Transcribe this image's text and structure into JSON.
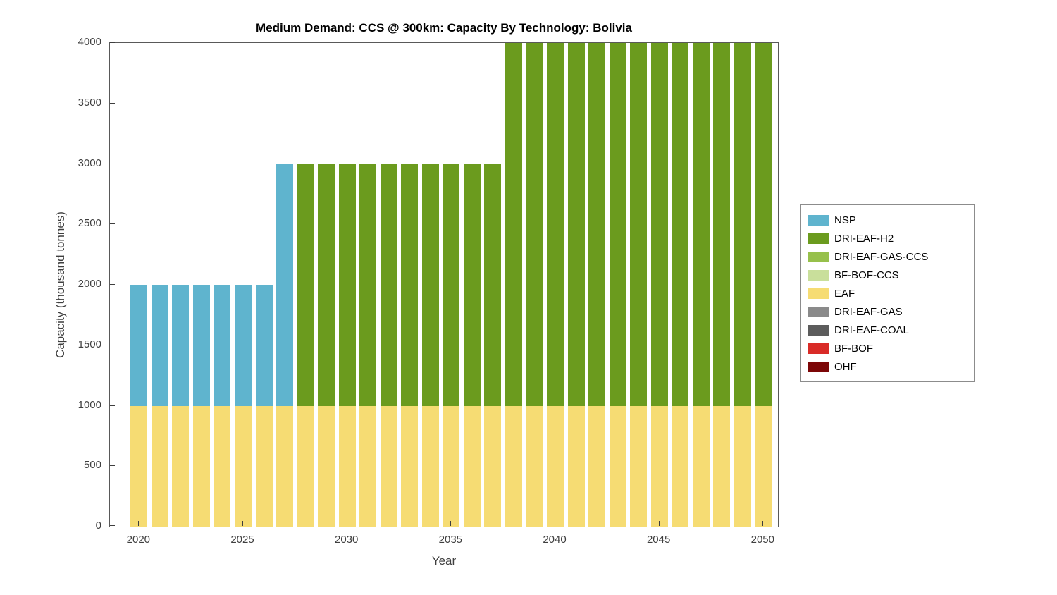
{
  "chart_data": {
    "type": "bar",
    "stacked": true,
    "title": "Medium Demand: CCS @ 300km: Capacity By Technology: Bolivia",
    "xlabel": "Year",
    "ylabel": "Capacity (thousand tonnes)",
    "ylim": [
      0,
      4000
    ],
    "xlim": [
      2018.6,
      2050.7
    ],
    "yticks": [
      0,
      500,
      1000,
      1500,
      2000,
      2500,
      3000,
      3500,
      4000
    ],
    "xticks": [
      2020,
      2025,
      2030,
      2035,
      2040,
      2045,
      2050
    ],
    "grid": false,
    "legend_position": "right-outside",
    "years": [
      2020,
      2021,
      2022,
      2023,
      2024,
      2025,
      2026,
      2027,
      2028,
      2029,
      2030,
      2031,
      2032,
      2033,
      2034,
      2035,
      2036,
      2037,
      2038,
      2039,
      2040,
      2041,
      2042,
      2043,
      2044,
      2045,
      2046,
      2047,
      2048,
      2049,
      2050
    ],
    "series": [
      {
        "name": "EAF",
        "color": "#F6DC73",
        "values": [
          1000,
          1000,
          1000,
          1000,
          1000,
          1000,
          1000,
          1000,
          1000,
          1000,
          1000,
          1000,
          1000,
          1000,
          1000,
          1000,
          1000,
          1000,
          1000,
          1000,
          1000,
          1000,
          1000,
          1000,
          1000,
          1000,
          1000,
          1000,
          1000,
          1000,
          1000
        ]
      },
      {
        "name": "NSP",
        "color": "#5FB4CE",
        "values": [
          1000,
          1000,
          1000,
          1000,
          1000,
          1000,
          1000,
          2000,
          0,
          0,
          0,
          0,
          0,
          0,
          0,
          0,
          0,
          0,
          0,
          0,
          0,
          0,
          0,
          0,
          0,
          0,
          0,
          0,
          0,
          0,
          0
        ]
      },
      {
        "name": "DRI-EAF-H2",
        "color": "#6B9B1E",
        "values": [
          0,
          0,
          0,
          0,
          0,
          0,
          0,
          0,
          2000,
          2000,
          2000,
          2000,
          2000,
          2000,
          2000,
          2000,
          2000,
          2000,
          3000,
          3000,
          3000,
          3000,
          3000,
          3000,
          3000,
          3000,
          3000,
          3000,
          3000,
          3000,
          3000
        ]
      }
    ],
    "legend": [
      {
        "label": "NSP",
        "color": "#5FB4CE"
      },
      {
        "label": "DRI-EAF-H2",
        "color": "#6B9B1E"
      },
      {
        "label": "DRI-EAF-GAS-CCS",
        "color": "#97C04B"
      },
      {
        "label": "BF-BOF-CCS",
        "color": "#C9DF9B"
      },
      {
        "label": "EAF",
        "color": "#F6DC73"
      },
      {
        "label": "DRI-EAF-GAS",
        "color": "#8A8A8A"
      },
      {
        "label": "DRI-EAF-COAL",
        "color": "#5C5C5C"
      },
      {
        "label": "BF-BOF",
        "color": "#D92B27"
      },
      {
        "label": "OHF",
        "color": "#7C0607"
      }
    ]
  }
}
